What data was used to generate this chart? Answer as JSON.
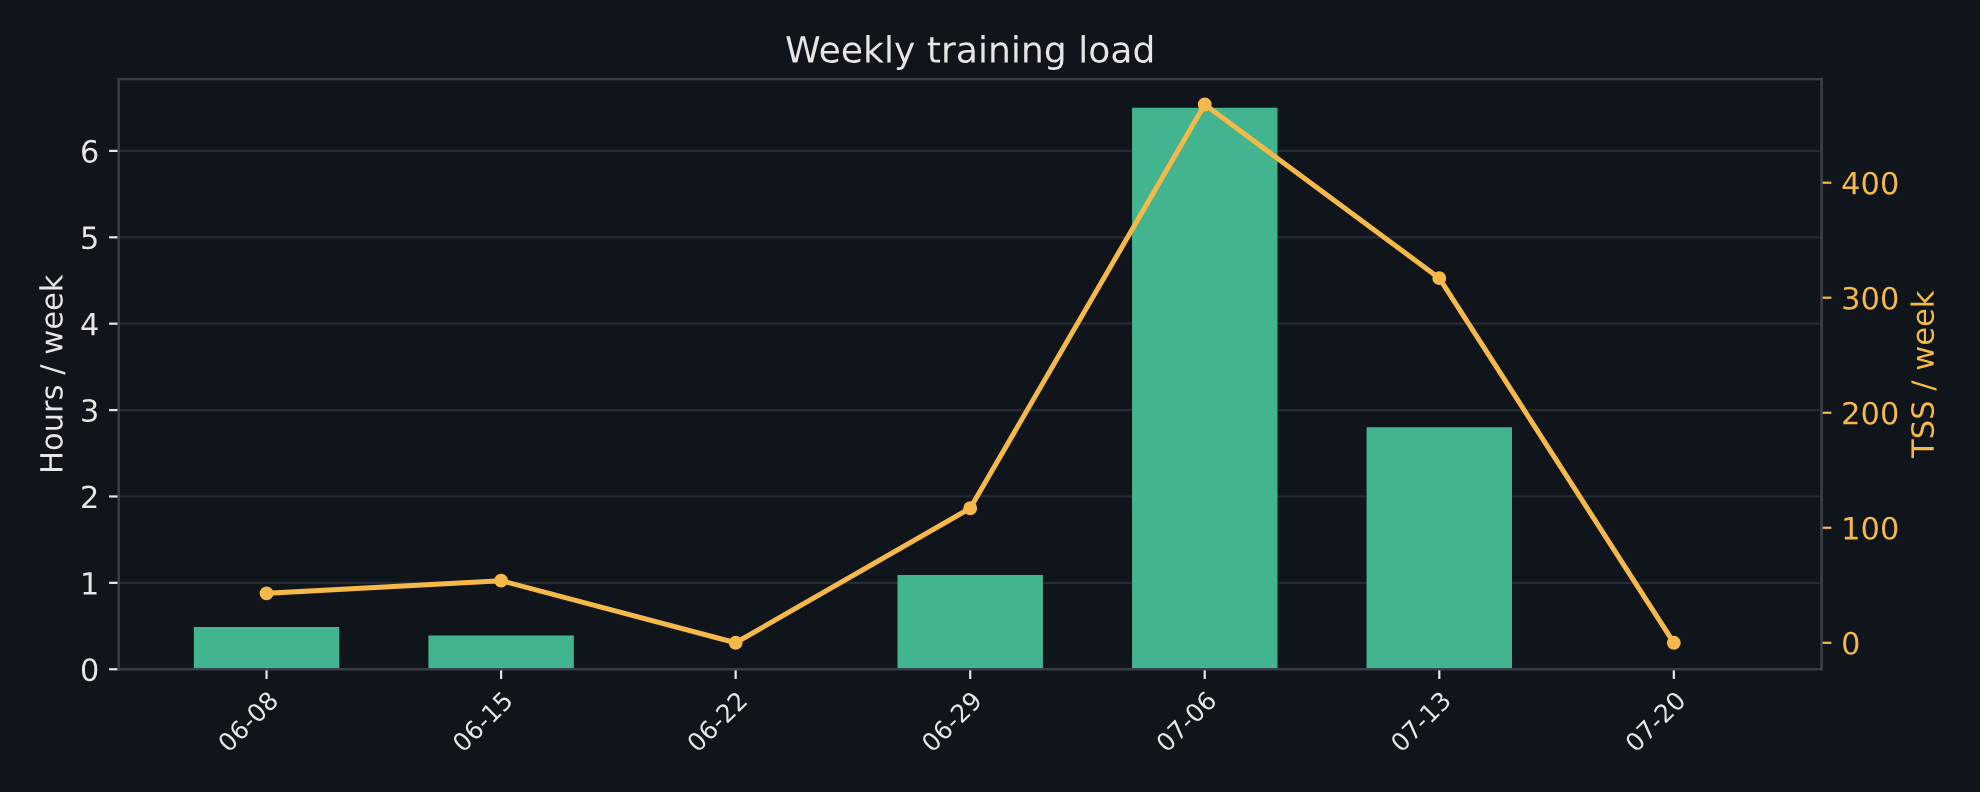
{
  "chart_data": {
    "type": "bar",
    "title": "Weekly training load",
    "ylabel": "Hours / week",
    "y2label": "TSS / week",
    "categories": [
      "06-08",
      "06-15",
      "06-22",
      "06-29",
      "07-06",
      "07-13",
      "07-20"
    ],
    "series": [
      {
        "color": "#42b490",
        "values": [
          0.49,
          0.39,
          0,
          1.09,
          6.5,
          2.8,
          0
        ]
      },
      {
        "type": "line",
        "axis": "y2",
        "color": "#f5b94a",
        "marker": "circle",
        "values": [
          43,
          54,
          0,
          117,
          468,
          317,
          0
        ]
      }
    ],
    "ylim": [
      0,
      6.83
    ],
    "yticks": [
      0,
      1,
      2,
      3,
      4,
      5,
      6
    ],
    "y2lim": [
      -23,
      490
    ],
    "y2ticks": [
      0,
      100,
      200,
      300,
      400
    ],
    "grid": "y",
    "legend": false
  }
}
